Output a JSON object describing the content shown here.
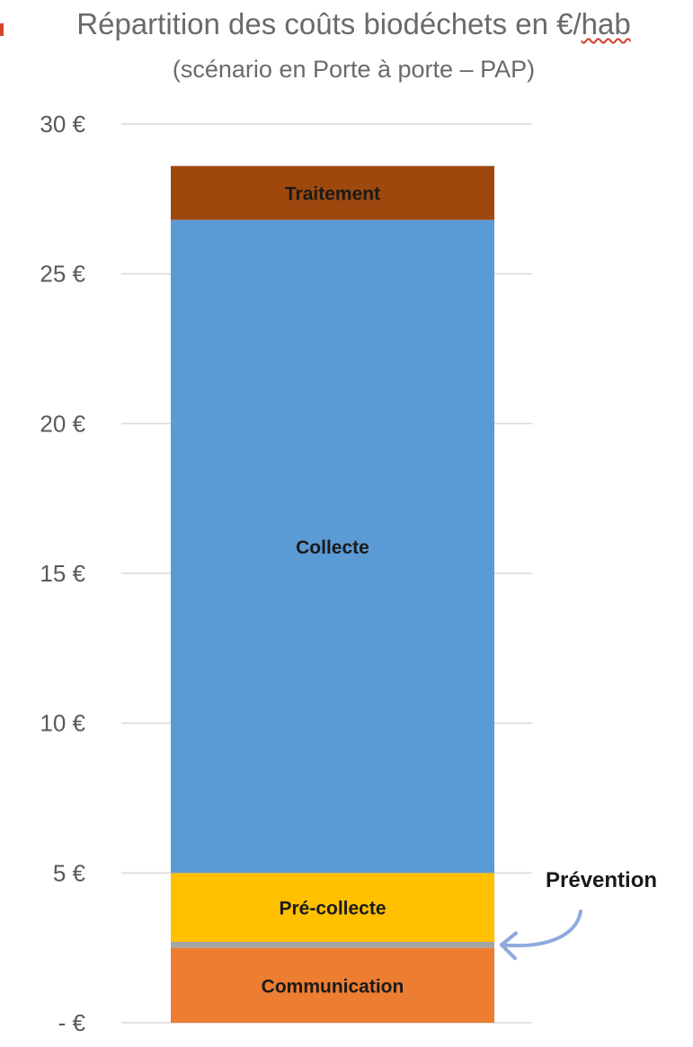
{
  "chart_data": {
    "type": "bar",
    "stacked": true,
    "title": "Répartition des coûts biodéchets en €/",
    "title_word": "hab",
    "subtitle": "(scénario en Porte à porte – PAP)",
    "ylim": [
      0,
      30
    ],
    "yticks": [
      0,
      5,
      10,
      15,
      20,
      25,
      30
    ],
    "ytick_labels": [
      "-   €",
      "5 €",
      "10 €",
      "15 €",
      "20 €",
      "25 €",
      "30 €"
    ],
    "grid": true,
    "categories": [
      ""
    ],
    "series": [
      {
        "name": "Communication",
        "values": [
          2.5
        ],
        "color": "#ed7d31",
        "label": "Communication"
      },
      {
        "name": "Prévention",
        "values": [
          0.2
        ],
        "color": "#a5a5a5",
        "label": ""
      },
      {
        "name": "Pré-collecte",
        "values": [
          2.3
        ],
        "color": "#ffc000",
        "label": "Pré-collecte"
      },
      {
        "name": "Collecte",
        "values": [
          21.8
        ],
        "color": "#5b9bd5",
        "label": "Collecte"
      },
      {
        "name": "Traitement",
        "values": [
          1.8
        ],
        "color": "#9e480e",
        "label": "Traitement"
      }
    ],
    "annotations": [
      {
        "text": "Prévention",
        "target": "Prévention",
        "arrow_color": "#8faadc"
      }
    ]
  }
}
